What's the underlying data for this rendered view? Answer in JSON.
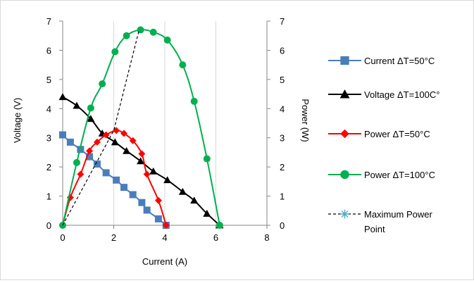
{
  "chart_data": {
    "type": "scatter",
    "title": "",
    "xlabel": "Current (A)",
    "ylabel": "Voltage (V)",
    "y2label": "Power (W)",
    "xlim": [
      0,
      8
    ],
    "ylim": [
      0,
      7
    ],
    "y2lim": [
      0,
      7
    ],
    "x_ticks": [
      "0",
      "2",
      "4",
      "6",
      "8"
    ],
    "y_ticks": [
      "0",
      "1",
      "2",
      "3",
      "4",
      "5",
      "6",
      "7"
    ],
    "y2_ticks": [
      "0",
      "1",
      "2",
      "3",
      "4",
      "5",
      "6",
      "7"
    ],
    "grid": "vertical",
    "legend_position": "right",
    "series": [
      {
        "name": "Current ΔT=50°C",
        "axis": "left",
        "color": "#4a7ebb",
        "marker": "square",
        "line_style": "solid",
        "x": [
          0,
          0.3,
          0.7,
          1.05,
          1.35,
          1.7,
          2.1,
          2.4,
          2.75,
          3.1,
          3.3,
          3.75,
          4.05
        ],
        "y": [
          3.1,
          2.85,
          2.6,
          2.35,
          2.1,
          1.8,
          1.55,
          1.3,
          1.05,
          0.78,
          0.52,
          0.22,
          0
        ]
      },
      {
        "name": "Voltage ΔT=100C°",
        "axis": "left",
        "color": "#000000",
        "marker": "triangle",
        "line_style": "solid",
        "x": [
          0,
          0.55,
          1.1,
          1.55,
          2.05,
          2.5,
          3.05,
          3.55,
          4.1,
          4.7,
          5.15,
          5.65,
          6.15
        ],
        "y": [
          4.4,
          4.1,
          3.65,
          3.15,
          2.85,
          2.55,
          2.2,
          1.85,
          1.55,
          1.15,
          0.85,
          0.4,
          0
        ]
      },
      {
        "name": "Power ΔT=50°C",
        "axis": "right",
        "color": "#ff0000",
        "marker": "diamond",
        "line_style": "solid",
        "x": [
          0,
          0.3,
          0.7,
          1.05,
          1.35,
          1.7,
          2.1,
          2.4,
          2.75,
          3.1,
          3.3,
          3.75,
          4.05
        ],
        "y": [
          0,
          0.95,
          1.75,
          2.55,
          2.85,
          3.1,
          3.25,
          3.15,
          2.9,
          2.45,
          1.75,
          0.85,
          0
        ]
      },
      {
        "name": "Power ΔT=100°C",
        "axis": "right",
        "color": "#00b050",
        "marker": "circle",
        "line_style": "solid",
        "x": [
          0,
          0.55,
          1.1,
          1.55,
          2.05,
          2.5,
          3.05,
          3.55,
          4.1,
          4.7,
          5.15,
          5.65,
          6.15
        ],
        "y": [
          0,
          2.15,
          4.02,
          4.85,
          5.95,
          6.5,
          6.7,
          6.62,
          6.35,
          5.5,
          4.25,
          2.28,
          0
        ]
      },
      {
        "name": "Maximum Power Point",
        "axis": "right",
        "color": "#000000",
        "marker": "star",
        "marker_color": "#4bacc6",
        "line_style": "dashed",
        "x": [
          0,
          2,
          3
        ],
        "y": [
          0,
          3.25,
          6.72
        ]
      }
    ]
  }
}
